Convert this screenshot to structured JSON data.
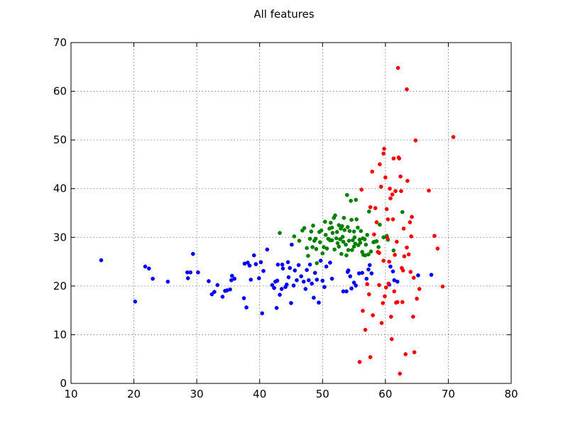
{
  "chart_data": {
    "type": "scatter",
    "title": "All features",
    "xlabel": "",
    "ylabel": "",
    "xlim": [
      10,
      80
    ],
    "ylim": [
      0,
      70
    ],
    "xticks": [
      10,
      20,
      30,
      40,
      50,
      60,
      70,
      80
    ],
    "yticks": [
      0,
      10,
      20,
      30,
      40,
      50,
      60,
      70
    ],
    "grid": true,
    "legend": "none",
    "series": [
      {
        "color": "#0000ff",
        "points": [
          [
            14.8,
            25.3
          ],
          [
            20.2,
            16.8
          ],
          [
            21.8,
            24.0
          ],
          [
            22.4,
            23.6
          ],
          [
            23.0,
            21.5
          ],
          [
            25.4,
            20.9
          ],
          [
            28.5,
            22.8
          ],
          [
            28.6,
            21.6
          ],
          [
            29.0,
            22.8
          ],
          [
            29.4,
            26.6
          ],
          [
            30.2,
            22.8
          ],
          [
            31.9,
            21.0
          ],
          [
            32.4,
            18.3
          ],
          [
            32.8,
            18.8
          ],
          [
            33.3,
            20.2
          ],
          [
            34.1,
            17.8
          ],
          [
            34.5,
            19.0
          ],
          [
            34.8,
            19.1
          ],
          [
            35.3,
            19.3
          ],
          [
            35.5,
            21.2
          ],
          [
            35.6,
            22.1
          ],
          [
            36.0,
            21.5
          ],
          [
            37.5,
            17.5
          ],
          [
            37.6,
            24.6
          ],
          [
            37.9,
            15.6
          ],
          [
            38.1,
            24.8
          ],
          [
            38.4,
            24.2
          ],
          [
            38.6,
            21.3
          ],
          [
            39.1,
            26.3
          ],
          [
            39.4,
            24.5
          ],
          [
            39.9,
            21.6
          ],
          [
            40.2,
            24.9
          ],
          [
            40.4,
            14.4
          ],
          [
            40.6,
            23.1
          ],
          [
            41.2,
            27.5
          ],
          [
            42.0,
            20.2
          ],
          [
            42.3,
            19.6
          ],
          [
            42.5,
            20.9
          ],
          [
            42.7,
            15.5
          ],
          [
            42.8,
            21.1
          ],
          [
            42.9,
            24.4
          ],
          [
            43.2,
            18.2
          ],
          [
            43.5,
            19.4
          ],
          [
            43.6,
            24.4
          ],
          [
            43.7,
            23.6
          ],
          [
            44.1,
            19.8
          ],
          [
            44.3,
            20.3
          ],
          [
            44.5,
            24.9
          ],
          [
            44.6,
            21.8
          ],
          [
            44.8,
            23.7
          ],
          [
            45.0,
            16.5
          ],
          [
            45.1,
            28.5
          ],
          [
            45.4,
            20.1
          ],
          [
            45.6,
            23.2
          ],
          [
            45.9,
            21.2
          ],
          [
            46.2,
            24.3
          ],
          [
            46.6,
            22.0
          ],
          [
            47.0,
            20.9
          ],
          [
            47.3,
            19.4
          ],
          [
            47.5,
            23.3
          ],
          [
            47.8,
            21.2
          ],
          [
            48.0,
            24.4
          ],
          [
            48.3,
            20.5
          ],
          [
            48.6,
            17.6
          ],
          [
            48.8,
            22.7
          ],
          [
            49.1,
            21.3
          ],
          [
            49.4,
            16.6
          ],
          [
            49.7,
            25.2
          ],
          [
            50.0,
            21.1
          ],
          [
            50.3,
            19.8
          ],
          [
            50.6,
            24.0
          ],
          [
            51.2,
            24.8
          ],
          [
            51.5,
            21.5
          ],
          [
            53.3,
            18.9
          ],
          [
            53.8,
            18.9
          ],
          [
            54.0,
            22.9
          ],
          [
            54.1,
            23.2
          ],
          [
            54.4,
            22.0
          ],
          [
            54.6,
            19.5
          ],
          [
            55.0,
            20.7
          ],
          [
            55.3,
            20.1
          ],
          [
            55.8,
            22.6
          ],
          [
            56.3,
            22.7
          ],
          [
            57.0,
            21.5
          ],
          [
            57.3,
            23.4
          ],
          [
            57.5,
            24.3
          ],
          [
            57.8,
            22.6
          ],
          [
            60.6,
            20.3
          ],
          [
            61.4,
            21.2
          ],
          [
            61.9,
            20.9
          ],
          [
            60.8,
            24.0
          ],
          [
            61.2,
            23.0
          ],
          [
            65.2,
            22.2
          ],
          [
            67.3,
            22.3
          ]
        ]
      },
      {
        "color": "#008000",
        "points": [
          [
            43.2,
            30.9
          ],
          [
            45.5,
            30.2
          ],
          [
            46.3,
            29.3
          ],
          [
            46.8,
            31.4
          ],
          [
            47.1,
            31.9
          ],
          [
            47.5,
            27.8
          ],
          [
            47.7,
            26.2
          ],
          [
            48.0,
            29.7
          ],
          [
            48.2,
            31.2
          ],
          [
            48.4,
            28.0
          ],
          [
            48.5,
            32.4
          ],
          [
            48.7,
            29.3
          ],
          [
            48.9,
            29.7
          ],
          [
            49.0,
            27.6
          ],
          [
            49.1,
            24.7
          ],
          [
            49.5,
            31.1
          ],
          [
            49.6,
            29.0
          ],
          [
            49.8,
            31.4
          ],
          [
            50.0,
            26.7
          ],
          [
            50.2,
            28.0
          ],
          [
            50.4,
            33.2
          ],
          [
            50.5,
            30.5
          ],
          [
            50.7,
            27.7
          ],
          [
            50.9,
            29.7
          ],
          [
            51.1,
            31.8
          ],
          [
            51.2,
            29.4
          ],
          [
            51.3,
            33.0
          ],
          [
            51.5,
            32.0
          ],
          [
            51.6,
            30.9
          ],
          [
            51.8,
            34.0
          ],
          [
            51.9,
            27.5
          ],
          [
            52.0,
            34.5
          ],
          [
            52.2,
            29.8
          ],
          [
            52.3,
            31.1
          ],
          [
            52.4,
            28.8
          ],
          [
            52.6,
            32.5
          ],
          [
            52.8,
            29.6
          ],
          [
            52.9,
            31.8
          ],
          [
            53.0,
            26.6
          ],
          [
            53.1,
            32.3
          ],
          [
            53.2,
            30.1
          ],
          [
            53.3,
            29.1
          ],
          [
            53.4,
            34.0
          ],
          [
            53.5,
            31.5
          ],
          [
            53.7,
            28.5
          ],
          [
            53.9,
            38.7
          ],
          [
            54.0,
            32.1
          ],
          [
            54.1,
            27.4
          ],
          [
            54.2,
            29.3
          ],
          [
            54.3,
            31.3
          ],
          [
            54.5,
            37.5
          ],
          [
            54.6,
            33.6
          ],
          [
            54.7,
            27.4
          ],
          [
            54.8,
            29.4
          ],
          [
            55.0,
            31.2
          ],
          [
            55.1,
            30.0
          ],
          [
            55.2,
            28.7
          ],
          [
            55.3,
            37.7
          ],
          [
            55.4,
            33.7
          ],
          [
            55.6,
            32.0
          ],
          [
            55.7,
            28.4
          ],
          [
            55.9,
            29.5
          ],
          [
            56.0,
            28.9
          ],
          [
            56.1,
            31.3
          ],
          [
            56.3,
            27.0
          ],
          [
            56.4,
            29.8
          ],
          [
            56.5,
            26.4
          ],
          [
            56.7,
            29.6
          ],
          [
            56.8,
            26.3
          ],
          [
            56.9,
            28.5
          ],
          [
            57.1,
            30.5
          ],
          [
            57.3,
            26.5
          ],
          [
            57.4,
            35.3
          ],
          [
            57.7,
            27.1
          ],
          [
            58.1,
            29.0
          ],
          [
            58.3,
            29.1
          ],
          [
            58.6,
            29.2
          ],
          [
            58.9,
            28.0
          ],
          [
            59.1,
            32.6
          ],
          [
            59.7,
            30.0
          ],
          [
            60.2,
            30.3
          ],
          [
            60.4,
            29.5
          ],
          [
            61.3,
            27.3
          ],
          [
            62.7,
            35.2
          ],
          [
            51.5,
            29.4
          ],
          [
            52.6,
            28.1
          ],
          [
            53.8,
            26.3
          ],
          [
            55.0,
            28.1
          ]
        ]
      },
      {
        "color": "#ff0000",
        "points": [
          [
            55.9,
            4.4
          ],
          [
            56.4,
            14.9
          ],
          [
            56.8,
            11.0
          ],
          [
            57.1,
            20.4
          ],
          [
            57.4,
            18.3
          ],
          [
            57.6,
            5.4
          ],
          [
            57.9,
            43.5
          ],
          [
            58.0,
            14.0
          ],
          [
            58.2,
            30.6
          ],
          [
            58.4,
            36.0
          ],
          [
            58.6,
            33.1
          ],
          [
            58.8,
            27.0
          ],
          [
            59.0,
            26.8
          ],
          [
            59.1,
            45.0
          ],
          [
            59.3,
            40.4
          ],
          [
            59.4,
            12.4
          ],
          [
            59.6,
            16.5
          ],
          [
            59.7,
            47.2
          ],
          [
            59.8,
            48.2
          ],
          [
            59.9,
            17.9
          ],
          [
            60.0,
            42.3
          ],
          [
            60.1,
            19.7
          ],
          [
            60.2,
            35.8
          ],
          [
            60.3,
            29.9
          ],
          [
            60.4,
            33.7
          ],
          [
            60.5,
            20.5
          ],
          [
            60.7,
            40.0
          ],
          [
            60.8,
            38.0
          ],
          [
            60.9,
            13.7
          ],
          [
            61.0,
            9.1
          ],
          [
            61.1,
            38.8
          ],
          [
            61.2,
            33.7
          ],
          [
            61.3,
            46.2
          ],
          [
            61.5,
            26.4
          ],
          [
            61.6,
            39.5
          ],
          [
            61.7,
            16.6
          ],
          [
            61.9,
            16.7
          ],
          [
            62.0,
            64.8
          ],
          [
            62.1,
            46.4
          ],
          [
            62.2,
            46.2
          ],
          [
            62.3,
            2.0
          ],
          [
            62.4,
            42.5
          ],
          [
            62.5,
            39.5
          ],
          [
            62.6,
            23.7
          ],
          [
            62.7,
            16.7
          ],
          [
            62.9,
            31.8
          ],
          [
            63.0,
            26.1
          ],
          [
            63.2,
            6.0
          ],
          [
            63.4,
            60.4
          ],
          [
            63.5,
            41.6
          ],
          [
            63.7,
            26.5
          ],
          [
            63.9,
            33.1
          ],
          [
            64.1,
            30.2
          ],
          [
            64.2,
            34.2
          ],
          [
            64.4,
            13.7
          ],
          [
            64.5,
            21.7
          ],
          [
            64.6,
            6.4
          ],
          [
            64.8,
            49.9
          ],
          [
            65.0,
            17.4
          ],
          [
            65.4,
            19.4
          ],
          [
            66.9,
            39.6
          ],
          [
            67.8,
            30.3
          ],
          [
            68.3,
            27.7
          ],
          [
            69.1,
            19.9
          ],
          [
            70.8,
            50.6
          ],
          [
            56.2,
            39.8
          ],
          [
            57.6,
            36.2
          ],
          [
            59.0,
            20.2
          ],
          [
            60.6,
            25.0
          ],
          [
            61.4,
            18.9
          ],
          [
            62.8,
            23.2
          ],
          [
            64.0,
            22.9
          ],
          [
            59.7,
            25.2
          ],
          [
            61.8,
            29.1
          ],
          [
            63.4,
            27.9
          ]
        ]
      }
    ]
  }
}
